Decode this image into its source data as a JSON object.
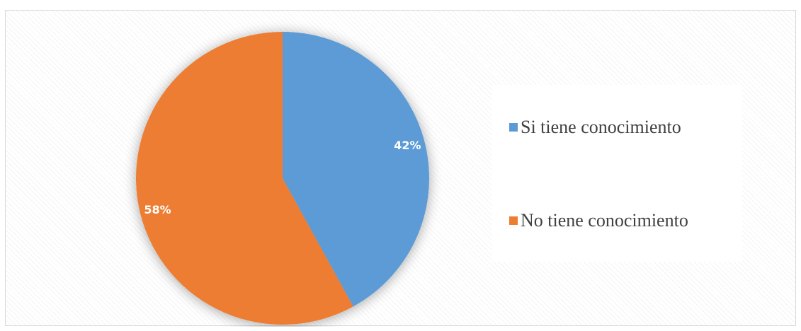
{
  "chart_data": {
    "type": "pie",
    "title": "",
    "slices": [
      {
        "label": "Si tiene conocimiento",
        "value": 42,
        "display": "42%",
        "color": "#5b9bd5"
      },
      {
        "label": "No tiene conocimiento",
        "value": 58,
        "display": "58%",
        "color": "#ed7d31"
      }
    ],
    "start_angle_deg": 0,
    "direction": "clockwise",
    "legend_position": "right"
  }
}
